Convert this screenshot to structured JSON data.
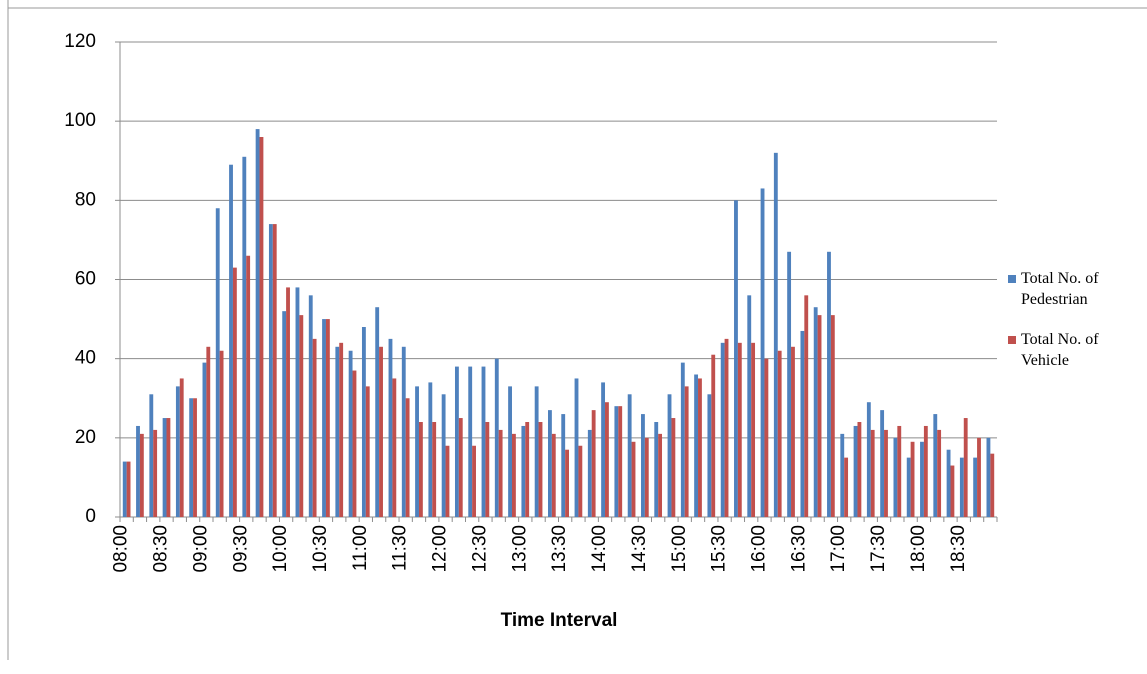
{
  "chart_data": {
    "type": "bar",
    "x_label": "Time Interval",
    "categories": [
      "08:00",
      null,
      null,
      "08:30",
      null,
      null,
      "09:00",
      null,
      null,
      "09:30",
      null,
      null,
      "10:00",
      null,
      null,
      "10:30",
      null,
      null,
      "11:00",
      null,
      null,
      "11:30",
      null,
      null,
      "12:00",
      null,
      null,
      "12:30",
      null,
      null,
      "13:00",
      null,
      null,
      "13:30",
      null,
      null,
      "14:00",
      null,
      null,
      "14:30",
      null,
      null,
      "15:00",
      null,
      null,
      "15:30",
      null,
      null,
      "16:00",
      null,
      null,
      "16:30",
      null,
      null,
      "17:00",
      null,
      null,
      "17:30",
      null,
      null,
      "18:00",
      null,
      null,
      "18:30",
      null,
      null
    ],
    "series": [
      {
        "name": "Total No. of Pedestrian",
        "color": "#4f81bd",
        "values": [
          14,
          23,
          31,
          25,
          33,
          30,
          39,
          78,
          89,
          91,
          98,
          74,
          52,
          58,
          56,
          50,
          43,
          42,
          48,
          53,
          45,
          43,
          33,
          34,
          31,
          38,
          38,
          38,
          40,
          33,
          23,
          33,
          27,
          26,
          35,
          22,
          34,
          28,
          31,
          26,
          24,
          31,
          39,
          36,
          31,
          44,
          80,
          56,
          83,
          92,
          67,
          47,
          53,
          67,
          21,
          23,
          29,
          27,
          20,
          15,
          19,
          26,
          17,
          15,
          15,
          20
        ]
      },
      {
        "name": "Total No. of Vehicle",
        "color": "#c0504d",
        "values": [
          14,
          21,
          22,
          25,
          35,
          30,
          43,
          42,
          63,
          66,
          96,
          74,
          58,
          51,
          45,
          50,
          44,
          37,
          33,
          43,
          35,
          30,
          24,
          24,
          18,
          25,
          18,
          24,
          22,
          21,
          24,
          24,
          21,
          17,
          18,
          27,
          29,
          28,
          19,
          20,
          21,
          25,
          33,
          35,
          41,
          45,
          44,
          44,
          40,
          42,
          43,
          56,
          51,
          51,
          15,
          24,
          22,
          22,
          23,
          19,
          23,
          22,
          13,
          25,
          20,
          16
        ]
      }
    ],
    "ylim": [
      0,
      120
    ],
    "yticks": [
      0,
      20,
      40,
      60,
      80,
      100,
      120
    ],
    "grid": true,
    "legend": "right"
  }
}
